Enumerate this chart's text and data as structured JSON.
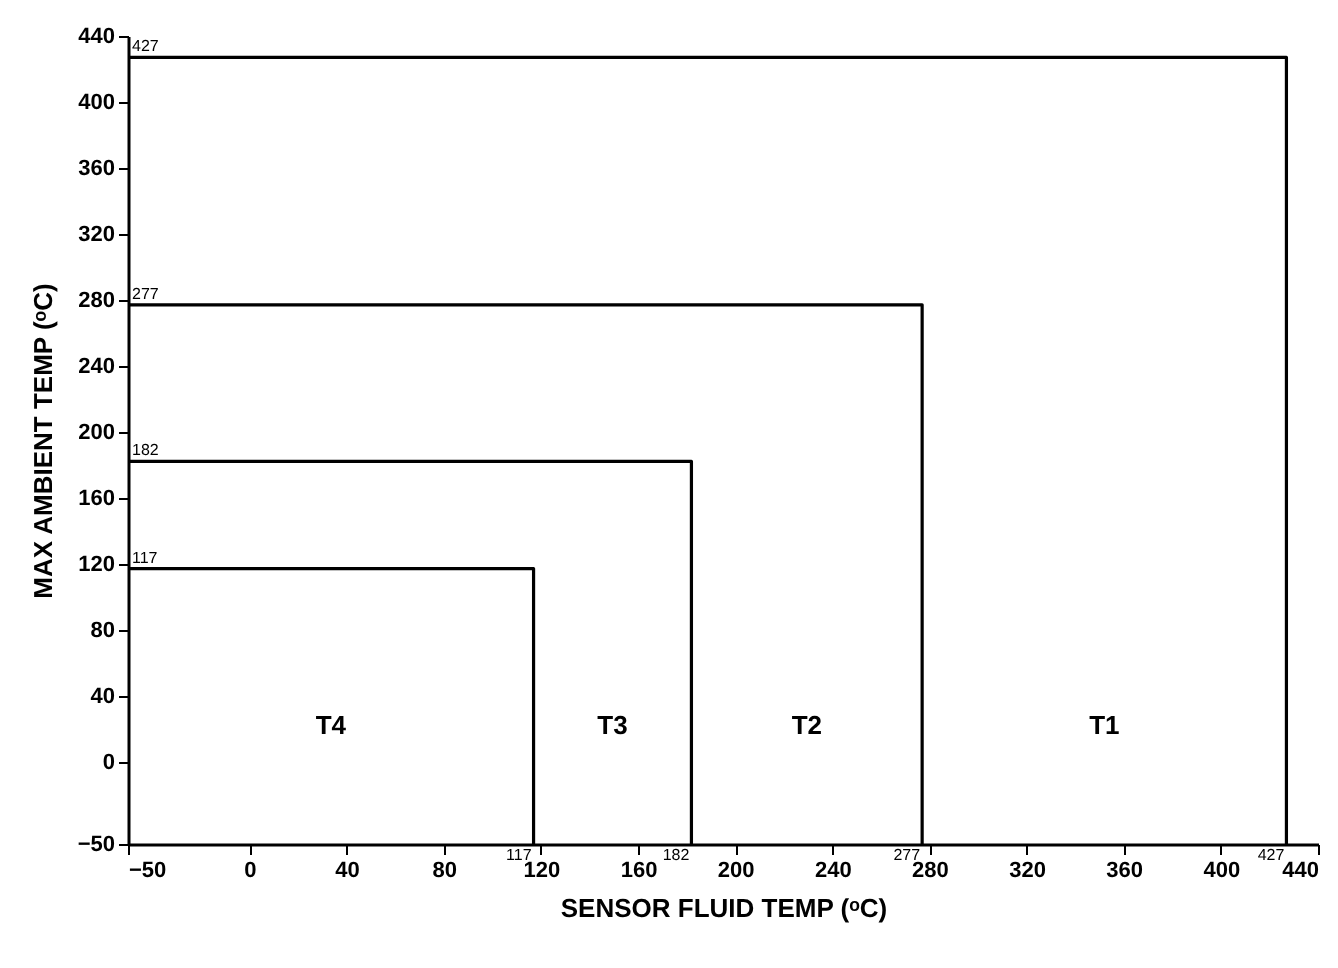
{
  "chart_data": {
    "type": "line",
    "xlabel": "SENSOR FLUID TEMP (ᵒC)",
    "ylabel": "MAX AMBIENT TEMP (ᵒC)",
    "xlim": [
      -50,
      440
    ],
    "ylim": [
      -50,
      440
    ],
    "xticks": [
      -50,
      0,
      40,
      80,
      120,
      160,
      200,
      240,
      280,
      320,
      360,
      400,
      440
    ],
    "yticks": [
      -50,
      0,
      40,
      80,
      120,
      160,
      200,
      240,
      280,
      320,
      360,
      400,
      440
    ],
    "grid": false,
    "marker": "none",
    "line_style": "solid",
    "series": [
      {
        "color": "#000000",
        "x": [
          -50,
          117,
          117
        ],
        "values": [
          117,
          117,
          -50
        ]
      },
      {
        "color": "#000000",
        "x": [
          -50,
          182,
          182
        ],
        "values": [
          182,
          182,
          -50
        ]
      },
      {
        "color": "#000000",
        "x": [
          -50,
          277,
          277
        ],
        "values": [
          277,
          277,
          -50
        ]
      },
      {
        "color": "#000000",
        "x": [
          -50,
          427,
          427
        ],
        "values": [
          427,
          427,
          -50
        ]
      }
    ],
    "annotations": [
      {
        "text": "117",
        "x": -50,
        "y": 117
      },
      {
        "text": "182",
        "x": -50,
        "y": 182
      },
      {
        "text": "277",
        "x": -50,
        "y": 277
      },
      {
        "text": "427",
        "x": -50,
        "y": 427
      },
      {
        "text": "117",
        "x": 117,
        "y": -50
      },
      {
        "text": "182",
        "x": 182,
        "y": -50
      },
      {
        "text": "277",
        "x": 277,
        "y": -50
      },
      {
        "text": "427",
        "x": 427,
        "y": -50
      },
      "T4",
      "T3",
      "T2",
      "T1"
    ]
  }
}
